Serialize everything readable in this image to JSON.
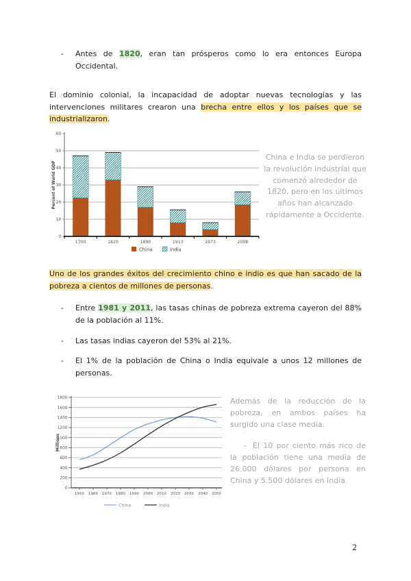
{
  "page": {
    "number": "2"
  },
  "intro_bullet": {
    "dash": "-",
    "pre": "Antes de ",
    "highlight": "1820",
    "post": ", eran tan prósperos como lo era entonces Europa Occidental."
  },
  "colonial_paragraph": {
    "pre": "El dominio colonial, la incapacidad de adoptar nuevas tecnologías y las intervenciones militares crearon una ",
    "highlight": "brecha entre ellos y los países que se industrializaron",
    "post": "."
  },
  "gdp_caption": "China e India se perdieron la revolución industrial que comenzó alrededor de 1820, pero en los últimos años han alcanzado rápidamente a Occidente.",
  "poverty_paragraph": {
    "highlight": "Uno de los grandes éxitos del crecimiento chino e indio es que han sacado de la pobreza a cientos de millones de personas",
    "post": "."
  },
  "bullets": [
    {
      "dash": "-",
      "pre": "Entre ",
      "highlight": "1981 y 2011",
      "post": ", las tasas chinas de pobreza extrema cayeron del 88% de la población al 11%."
    },
    {
      "dash": "-",
      "text": "Las tasas indias cayeron del 53% al 21%."
    },
    {
      "dash": "-",
      "text": "El 1% de la población de China o India equivale a unos 12 millones de personas."
    }
  ],
  "population_caption": {
    "intro": "Además de la reducción de la pobreza, en ambos países ha surgido una clase media.",
    "bullet_dash": "-",
    "bullet_text": "El 10 por ciento más rico de la población tiene una media de 26.000 dólares por persona en China y 5.500 dólares en India."
  },
  "colors": {
    "china_bar": "#b5531c",
    "india_hatch": "#2e8b8b",
    "china_line": "#7f9fd2",
    "india_line": "#2e2e2e",
    "grid": "#9c9c9c",
    "axis_dark": "#1a1a1a",
    "tick_text": "#555555",
    "caption_gray": "#a8a8a8",
    "yellow_highlight": "#fbe4a0",
    "green_highlight_bg": "#e0eddb",
    "green_highlight_text": "#3c7a3c"
  },
  "chart_data": [
    {
      "type": "bar",
      "stacked": true,
      "ylabel": "Percent of World GDP",
      "ylim": [
        0,
        60
      ],
      "ytick_step": 10,
      "grid": true,
      "legend_position": "bottom",
      "categories": [
        "1700",
        "1820",
        "1890",
        "1913",
        "1973",
        "2008"
      ],
      "series": [
        {
          "name": "China",
          "style": "solid",
          "values": [
            22.5,
            33,
            17,
            8,
            4,
            18.5
          ]
        },
        {
          "name": "India",
          "style": "hatched",
          "values": [
            24.5,
            16,
            12,
            7.5,
            4,
            7.5
          ]
        }
      ]
    },
    {
      "type": "line",
      "ylabel": "Millions",
      "ylim": [
        0,
        1800
      ],
      "ytick_step": 200,
      "grid": true,
      "legend_position": "bottom",
      "x": [
        1950,
        1960,
        1970,
        1980,
        1990,
        2000,
        2010,
        2020,
        2030,
        2040,
        2050
      ],
      "series": [
        {
          "name": "China",
          "values": [
            560,
            655,
            820,
            995,
            1160,
            1270,
            1350,
            1400,
            1415,
            1385,
            1310
          ]
        },
        {
          "name": "India",
          "values": [
            370,
            450,
            555,
            695,
            870,
            1055,
            1230,
            1380,
            1505,
            1605,
            1660
          ]
        }
      ]
    }
  ]
}
